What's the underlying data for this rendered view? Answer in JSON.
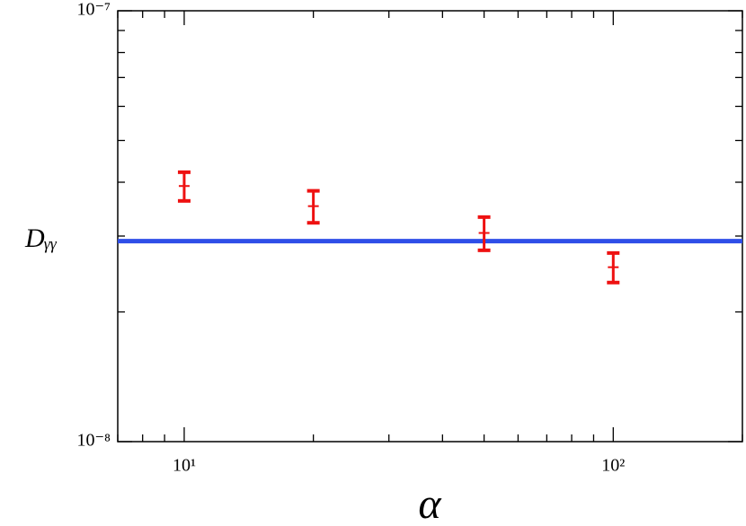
{
  "chart_data": {
    "type": "errorbar",
    "xlabel": "α",
    "ylabel": "Dᵧᵧ",
    "x": [
      10,
      20,
      50,
      100
    ],
    "values": [
      3.92e-08,
      3.52e-08,
      3.05e-08,
      2.54e-08
    ],
    "errors": [
      3e-09,
      3e-09,
      2.7e-09,
      2e-09
    ],
    "color": "#ee1111",
    "hline": {
      "value": 2.92e-08,
      "color": "#2f4ee8"
    },
    "xlog": true,
    "ylog": true,
    "xlim": [
      7,
      200
    ],
    "ylim": [
      1e-08,
      1e-07
    ],
    "xticks": [
      {
        "value": 10,
        "label": "10¹"
      },
      {
        "value": 100,
        "label": "10²"
      }
    ],
    "yticks": [
      {
        "value": 1e-08,
        "label": "10⁻⁸"
      },
      {
        "value": 1e-07,
        "label": "10⁻⁷"
      }
    ],
    "xticks_minor": [
      7,
      8,
      9,
      20,
      30,
      40,
      50,
      60,
      70,
      80,
      90,
      200
    ],
    "yticks_minor": [
      2e-08,
      3e-08,
      4e-08,
      5e-08,
      6e-08,
      7e-08,
      8e-08,
      9e-08
    ]
  }
}
